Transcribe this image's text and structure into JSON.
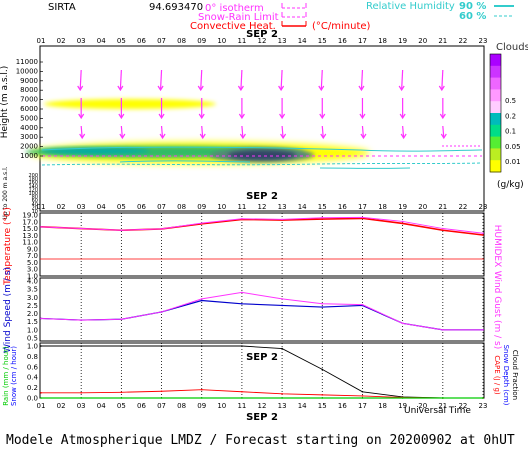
{
  "header": {
    "station": "SIRTA",
    "station_value": "94.693470",
    "legend_isotherm": "0° isotherm",
    "legend_snow_rain": "Snow-Rain Limit",
    "legend_convective": "Convective Heat.",
    "legend_convective_unit": "(°C/minute)",
    "legend_rh": "Relative Humidity",
    "rh_90": "90 %",
    "rh_60": "60 %"
  },
  "colors": {
    "isotherm": "#ff33ff",
    "convective": "#ff0000",
    "humidity": "#33cccc",
    "wind_arrow": "#ff33ff",
    "temperature": "#ff0000",
    "humidex": "#ff33ff",
    "wind_speed": "#0000cc",
    "wind_gust": "#ff33ff",
    "rain": "#00cc00",
    "snow": "#0000ff",
    "cape": "#ff0000",
    "snow_depth": "#0000ff",
    "cloud_fraction": "#000000"
  },
  "time_axis": {
    "hours": [
      "01",
      "02",
      "03",
      "04",
      "05",
      "06",
      "07",
      "08",
      "09",
      "10",
      "11",
      "12",
      "13",
      "14",
      "15",
      "16",
      "17",
      "18",
      "19",
      "20",
      "21",
      "22",
      "23"
    ],
    "date_label": "SEP  2",
    "universal_time": "Universal Time"
  },
  "footer": {
    "title": "Modele Atmospherique LMDZ / Forecast starting on 20200902 at 0hUT"
  },
  "chart_data": [
    {
      "type": "heatmap",
      "name": "clouds",
      "ylabel": "Height  (m a.s.l.)",
      "ylabel_lower": "Up to 200 m a.s.l.",
      "yticks_upper": [
        "11000",
        "10000",
        "9000",
        "8000",
        "7000",
        "6000",
        "5000",
        "4000",
        "3000",
        "2000",
        "1000"
      ],
      "yticks_lower": [
        "200",
        "180",
        "160",
        "140",
        "120",
        "100",
        "80",
        "60",
        "40",
        "20",
        "10"
      ],
      "colorbar": {
        "title": "Clouds",
        "unit": "(g/kg)",
        "levels": [
          "0.5",
          "0.2",
          "0.1",
          "0.05",
          "0.01"
        ],
        "colors": [
          "#aa00ff",
          "#cc33ff",
          "#ee66ff",
          "#ff99ff",
          "#ffccff",
          "#00bbbb",
          "#00dd88",
          "#55ee33",
          "#bbee22",
          "#ffff00"
        ]
      },
      "layers": [
        {
          "level": "mid",
          "height_m": 6700,
          "start_hour": 1,
          "end_hour": 9,
          "peak_g_per_kg": 0.01
        },
        {
          "level": "low",
          "height_m": 2000,
          "start_hour": 1,
          "end_hour": 14,
          "peak_g_per_kg": 0.5
        }
      ],
      "wind_arrows_hours": [
        3,
        5,
        7,
        9,
        11,
        13,
        15,
        17,
        19,
        21
      ]
    },
    {
      "type": "line",
      "name": "temperature",
      "ylabel": "Temperature (°C)",
      "ylabel_right": "HUMIDEX",
      "yticks": [
        "19.0",
        "17.0",
        "15.0",
        "13.0",
        "11.0",
        "9.0",
        "7.0",
        "5.0",
        "3.0",
        "1.0"
      ],
      "ylim": [
        1,
        19
      ],
      "x": [
        1,
        3,
        5,
        7,
        9,
        11,
        13,
        15,
        17,
        19,
        21,
        23
      ],
      "series": [
        {
          "name": "Temperature",
          "values": [
            15.5,
            15.0,
            14.5,
            14.9,
            16.4,
            17.7,
            17.5,
            17.8,
            18.0,
            16.5,
            14.5,
            13.1
          ]
        },
        {
          "name": "HUMIDEX",
          "values": [
            15.5,
            15.0,
            14.5,
            14.9,
            16.6,
            17.9,
            17.7,
            18.2,
            18.3,
            17.1,
            15.0,
            13.6
          ]
        }
      ]
    },
    {
      "type": "line",
      "name": "wind",
      "ylabel": "Wind Speed (m / s)",
      "ylabel_right": "Wind Gust (m / s)",
      "yticks": [
        "4.0",
        "3.5",
        "3.0",
        "2.5",
        "2.0",
        "1.5",
        "1.0",
        "0.5"
      ],
      "ylim": [
        0.5,
        4.0
      ],
      "x": [
        1,
        3,
        5,
        7,
        9,
        11,
        13,
        15,
        17,
        19,
        21,
        23
      ],
      "series": [
        {
          "name": "Wind Speed",
          "values": [
            1.7,
            1.6,
            1.65,
            2.1,
            2.8,
            2.6,
            2.5,
            2.4,
            2.5,
            1.4,
            1.0,
            1.0
          ]
        },
        {
          "name": "Wind Gust",
          "values": [
            1.7,
            1.6,
            1.65,
            2.1,
            2.9,
            3.3,
            2.9,
            2.6,
            2.55,
            1.4,
            1.0,
            1.0
          ]
        }
      ]
    },
    {
      "type": "line",
      "name": "precipitation",
      "ylabel": "Rain (mm / hour)",
      "ylabel_snow": "Snow (cm / hour)",
      "ylabel_right": "CAPE (J / g)",
      "ylabel_right2": "Snow Depth (cm)",
      "ylabel_right3": "Cloud Fraction",
      "yticks": [
        "1.0",
        "0.8",
        "0.6",
        "0.4",
        "0.2",
        "0.0"
      ],
      "ylim": [
        0,
        1
      ],
      "x": [
        1,
        3,
        5,
        7,
        9,
        11,
        13,
        15,
        17,
        19,
        21,
        23
      ],
      "series": [
        {
          "name": "Cloud Fraction",
          "values": [
            1.0,
            1.0,
            1.0,
            1.0,
            1.0,
            1.0,
            0.95,
            0.55,
            0.12,
            0.02,
            0.0,
            0.0
          ]
        },
        {
          "name": "CAPE",
          "values": [
            0.1,
            0.1,
            0.11,
            0.13,
            0.16,
            0.12,
            0.08,
            0.06,
            0.04,
            0.01,
            0.0,
            0.0
          ]
        },
        {
          "name": "Rain",
          "values": [
            0,
            0,
            0,
            0,
            0,
            0,
            0,
            0,
            0,
            0,
            0,
            0
          ]
        }
      ]
    }
  ]
}
